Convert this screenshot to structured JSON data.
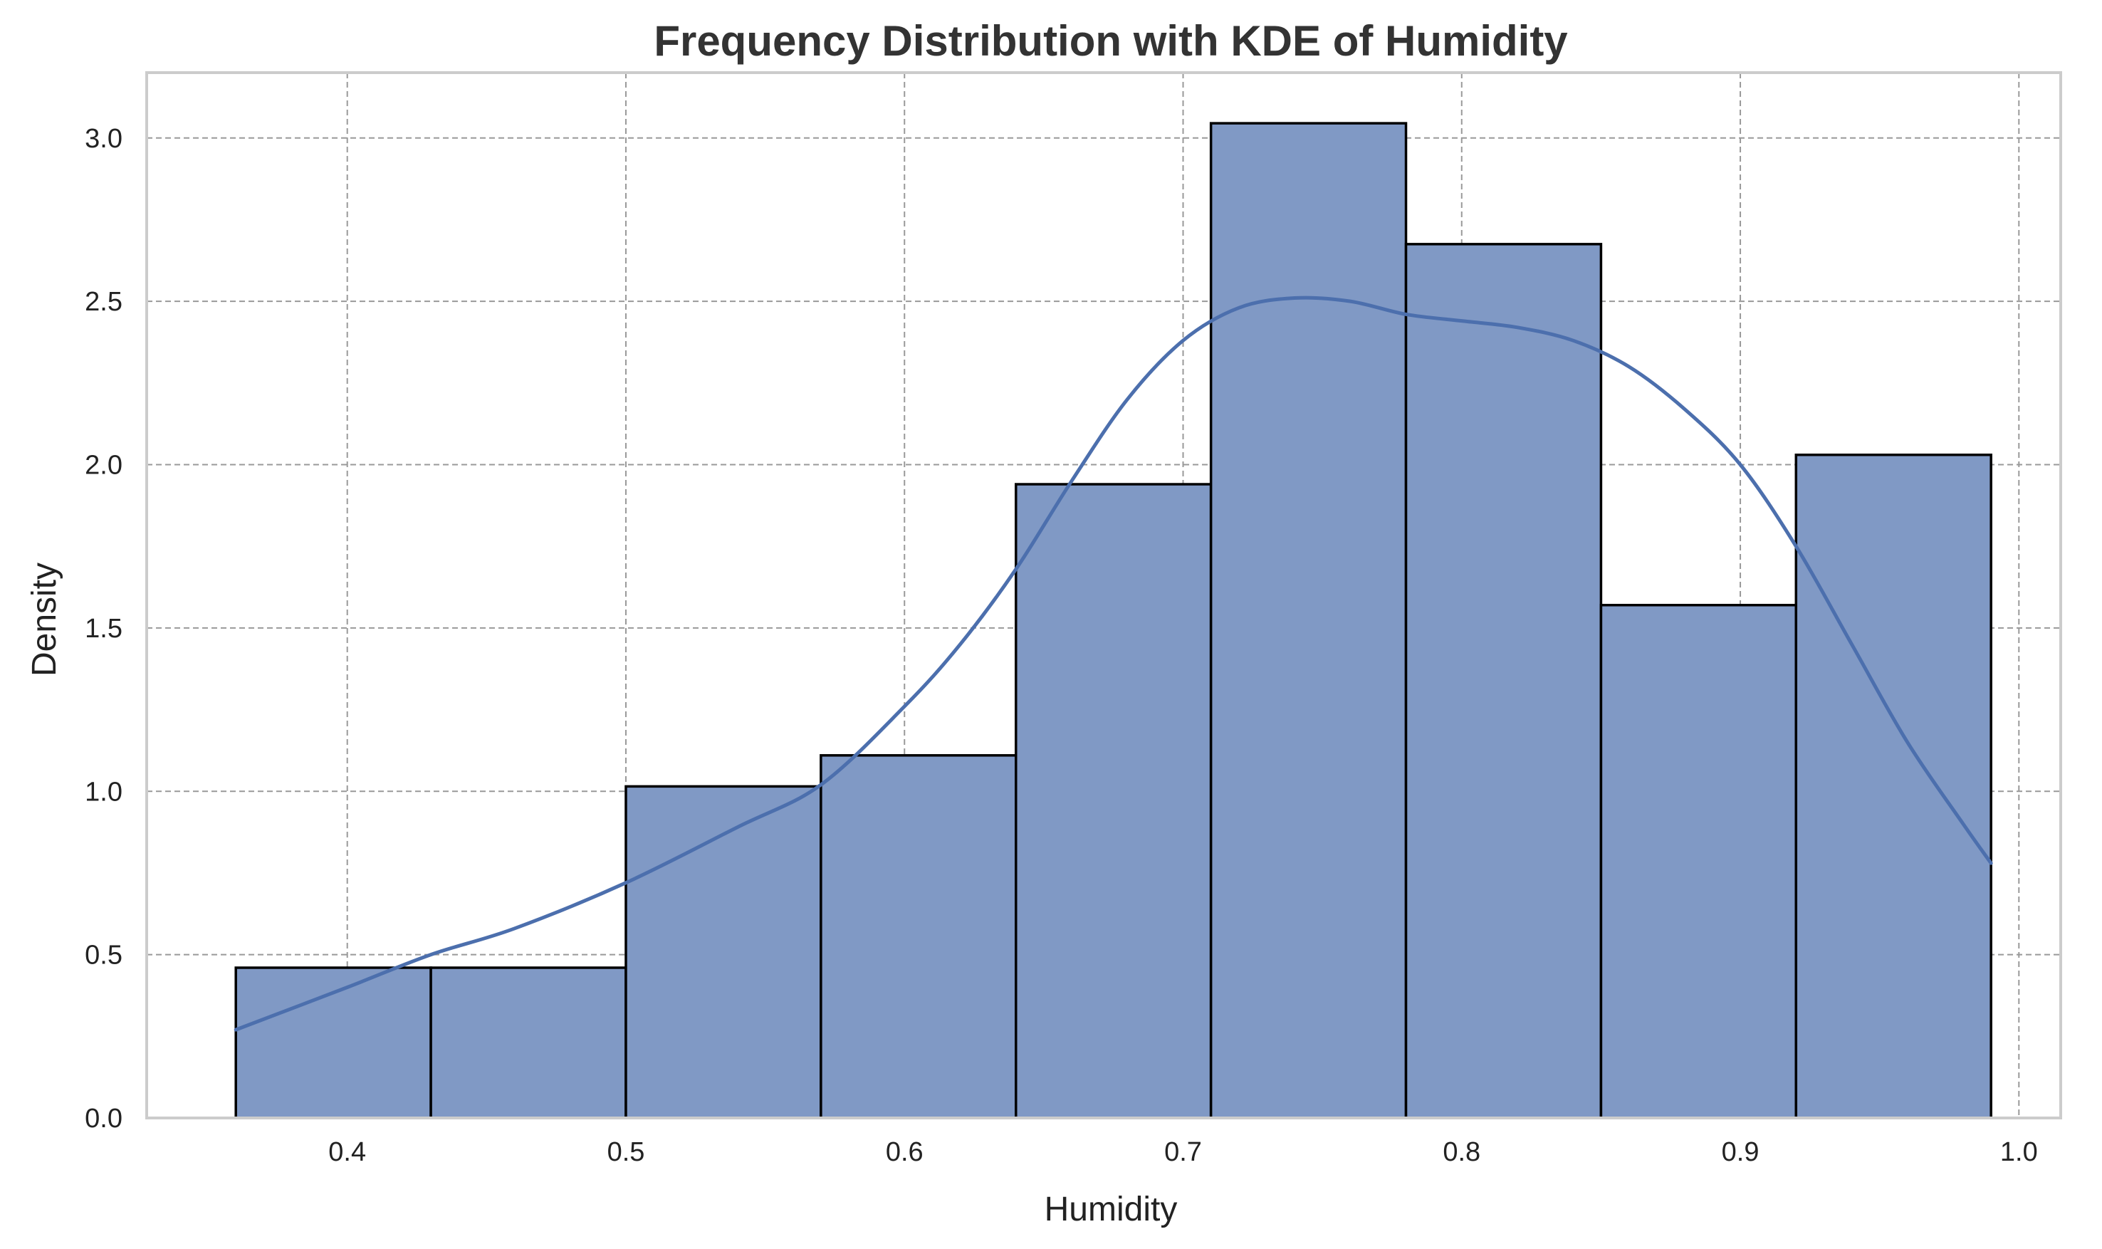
{
  "chart_data": {
    "type": "bar",
    "title": "Frequency Distribution with KDE of Humidity",
    "xlabel": "Humidity",
    "ylabel": "Density",
    "xlim": [
      0.328,
      1.015
    ],
    "ylim": [
      0.0,
      3.2
    ],
    "x_ticks": [
      "0.4",
      "0.5",
      "0.6",
      "0.7",
      "0.8",
      "0.9",
      "1.0"
    ],
    "y_ticks": [
      "0.0",
      "0.5",
      "1.0",
      "1.5",
      "2.0",
      "2.5",
      "3.0"
    ],
    "grid": true,
    "bin_edges": [
      0.36,
      0.43,
      0.5,
      0.57,
      0.64,
      0.71,
      0.78,
      0.85,
      0.92,
      0.99
    ],
    "values": [
      0.46,
      0.46,
      1.015,
      1.11,
      1.94,
      3.045,
      2.675,
      1.57,
      2.03
    ],
    "kde": {
      "x": [
        0.36,
        0.4,
        0.43,
        0.46,
        0.5,
        0.54,
        0.57,
        0.6,
        0.62,
        0.64,
        0.66,
        0.68,
        0.7,
        0.72,
        0.74,
        0.76,
        0.78,
        0.8,
        0.82,
        0.84,
        0.86,
        0.88,
        0.9,
        0.92,
        0.94,
        0.96,
        0.98,
        0.99
      ],
      "y": [
        0.27,
        0.4,
        0.5,
        0.58,
        0.72,
        0.89,
        1.02,
        1.26,
        1.45,
        1.68,
        1.95,
        2.2,
        2.38,
        2.48,
        2.51,
        2.5,
        2.46,
        2.44,
        2.42,
        2.38,
        2.3,
        2.17,
        2.0,
        1.75,
        1.45,
        1.15,
        0.9,
        0.78
      ]
    },
    "colors": {
      "bar_fill": "#8099c5",
      "bar_edge": "#000000",
      "kde_line": "#4c6fad",
      "grid": "#999999",
      "axes_edge": "#cccccc",
      "title": "#333333"
    }
  }
}
